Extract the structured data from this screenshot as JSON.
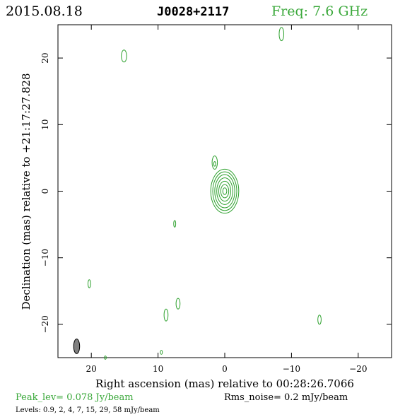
{
  "header": {
    "date": "2015.08.18",
    "source": "J0028+2117",
    "freq": "Freq: 7.6 GHz"
  },
  "axes": {
    "xlabel": "Right ascension (mas) relative to 00:28:26.7066",
    "ylabel": "Declination (mas) relative to +21:17:27.828"
  },
  "footer": {
    "peak": "Peak_lev=  0.078 Jy/beam",
    "rms": "Rms_noise=  0.2 mJy/beam",
    "levels": "Levels: 0.9,   2,   4,   7,  15,  29,  58 mJy/beam"
  },
  "colors": {
    "contour": "#2ca02c",
    "frame": "#000000",
    "beam": "#808080",
    "freq_text": "#3aa83a",
    "peak_text": "#3aa83a"
  },
  "chart_data": {
    "type": "contour",
    "xlim": [
      25,
      -25
    ],
    "ylim": [
      -25,
      25
    ],
    "x_ticks": [
      20,
      10,
      0,
      -10,
      -20
    ],
    "y_ticks": [
      -20,
      -10,
      0,
      10,
      20
    ],
    "x_tick_labels": [
      "20",
      "10",
      "0",
      "−10",
      "−20"
    ],
    "y_tick_labels": [
      "−20",
      "−10",
      "0",
      "10",
      "20"
    ],
    "core": {
      "x": 0,
      "y": 0,
      "rings": [
        {
          "rx": 2.1,
          "ry": 3.3
        },
        {
          "rx": 1.8,
          "ry": 2.9
        },
        {
          "rx": 1.5,
          "ry": 2.5
        },
        {
          "rx": 1.2,
          "ry": 2.0
        },
        {
          "rx": 0.9,
          "ry": 1.5
        },
        {
          "rx": 0.6,
          "ry": 1.0
        },
        {
          "rx": 0.3,
          "ry": 0.5
        }
      ]
    },
    "jet_component": {
      "x": 1.5,
      "y": 4.3,
      "rx": 0.4,
      "ry": 1.0
    },
    "jet_inner": {
      "x": 1.5,
      "y": 4.1,
      "rx": 0.15,
      "ry": 0.35
    },
    "noise_blobs": [
      {
        "x": 15.1,
        "y": 20.3,
        "rx": 0.4,
        "ry": 0.9
      },
      {
        "x": -8.5,
        "y": 23.6,
        "rx": 0.35,
        "ry": 1.0
      },
      {
        "x": 7.5,
        "y": -4.9,
        "rx": 0.15,
        "ry": 0.5
      },
      {
        "x": 20.3,
        "y": -13.9,
        "rx": 0.2,
        "ry": 0.6
      },
      {
        "x": 7.0,
        "y": -16.9,
        "rx": 0.3,
        "ry": 0.8
      },
      {
        "x": 8.8,
        "y": -18.6,
        "rx": 0.3,
        "ry": 0.9
      },
      {
        "x": -14.2,
        "y": -19.3,
        "rx": 0.25,
        "ry": 0.7
      },
      {
        "x": 9.5,
        "y": -24.2,
        "rx": 0.15,
        "ry": 0.3
      },
      {
        "x": 17.9,
        "y": -25.0,
        "rx": 0.15,
        "ry": 0.25
      }
    ],
    "beam": {
      "x": 22.2,
      "y": -23.3,
      "rx": 0.45,
      "ry": 1.1
    }
  }
}
